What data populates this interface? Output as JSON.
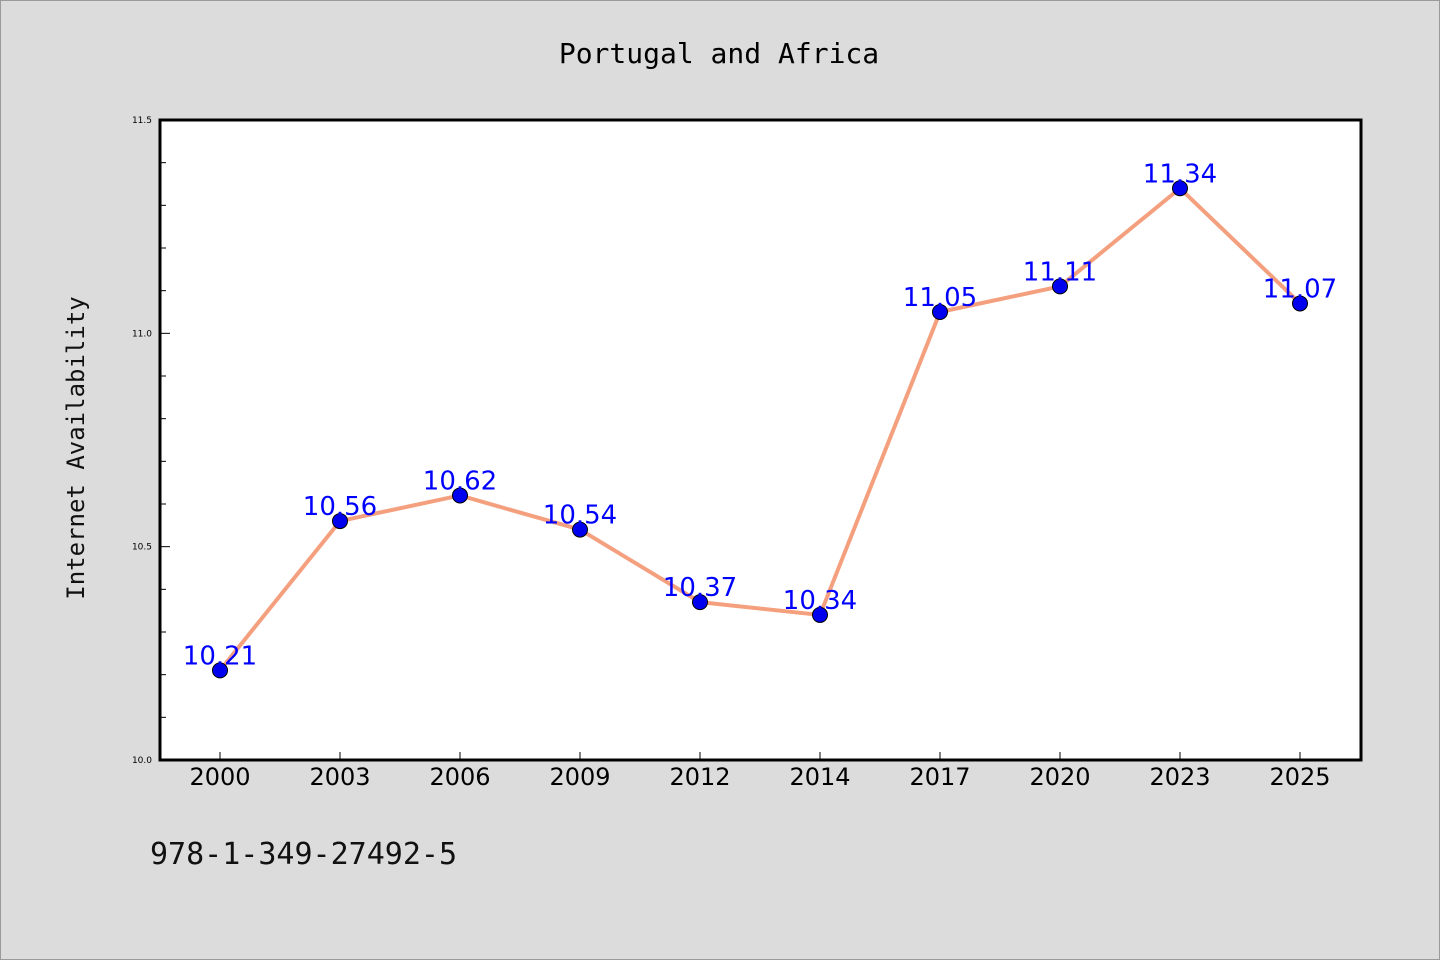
{
  "chart_data": {
    "type": "line",
    "title": "Portugal and Africa",
    "xlabel": "",
    "ylabel": "Internet Availability",
    "categories": [
      "2000",
      "2003",
      "2006",
      "2009",
      "2012",
      "2014",
      "2017",
      "2020",
      "2023",
      "2025"
    ],
    "series": [
      {
        "values": [
          10.21,
          10.56,
          10.62,
          10.54,
          10.37,
          10.34,
          11.05,
          11.11,
          11.34,
          11.07
        ],
        "data_labels": [
          "10.21",
          "10.56",
          "10.62",
          "10.54",
          "10.37",
          "10.34",
          "11.05",
          "11.11",
          "11.34",
          "11.07"
        ],
        "line_color": "#f4a07e",
        "marker_color": "#0000ee",
        "label_color": "#0000ff"
      }
    ],
    "ylim": [
      10.0,
      11.5
    ],
    "yticks": [
      "10.0",
      "10.5",
      "11.0",
      "11.5"
    ],
    "grid": false,
    "legend": "none"
  },
  "footnote": "978-1-349-27492-5",
  "colors": {
    "background": "#dcdcdc",
    "plot_background": "#ffffff",
    "axis": "#000000"
  }
}
